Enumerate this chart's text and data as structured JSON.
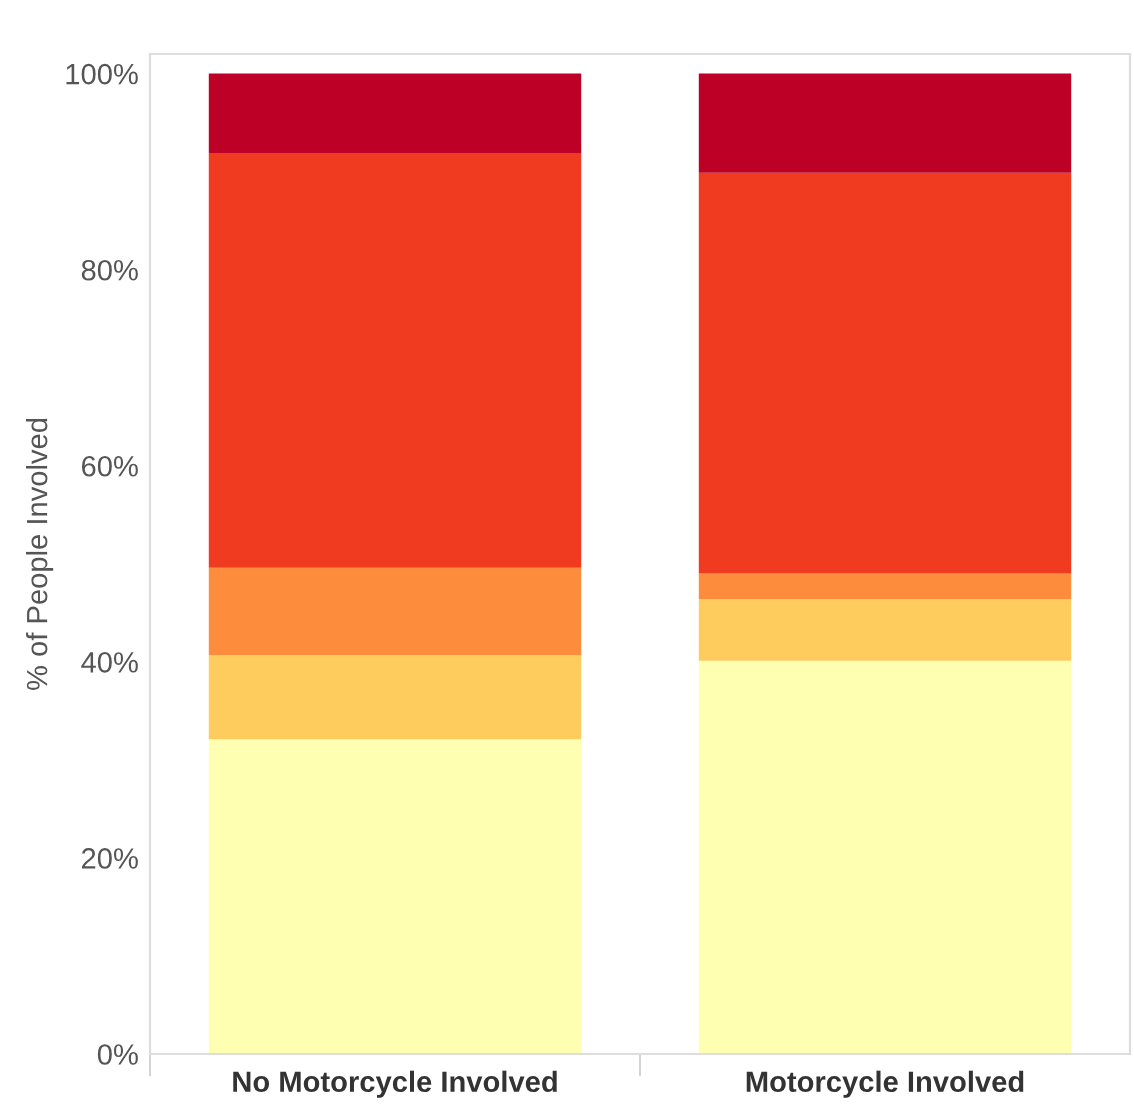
{
  "chart_data": {
    "type": "bar",
    "stacked": true,
    "ylabel": "% of People Involved",
    "categories": [
      "No Motorcycle Involved",
      "Motorcycle Involved"
    ],
    "series": [
      {
        "color": "#ffffb2",
        "values": [
          32.1,
          40.1
        ]
      },
      {
        "color": "#fecc5c",
        "values": [
          8.6,
          6.3
        ]
      },
      {
        "color": "#fd8d3c",
        "values": [
          8.9,
          2.6
        ]
      },
      {
        "color": "#f03b20",
        "values": [
          42.3,
          40.9
        ]
      },
      {
        "color": "#bd0026",
        "values": [
          8.1,
          10.1
        ]
      }
    ],
    "ylim": [
      0,
      102
    ],
    "yticks": [
      {
        "value": 0,
        "label": "0%"
      },
      {
        "value": 20,
        "label": "20%"
      },
      {
        "value": 40,
        "label": "40%"
      },
      {
        "value": 60,
        "label": "60%"
      },
      {
        "value": 80,
        "label": "80%"
      },
      {
        "value": 100,
        "label": "100%"
      }
    ],
    "grid": false,
    "legend": false
  }
}
